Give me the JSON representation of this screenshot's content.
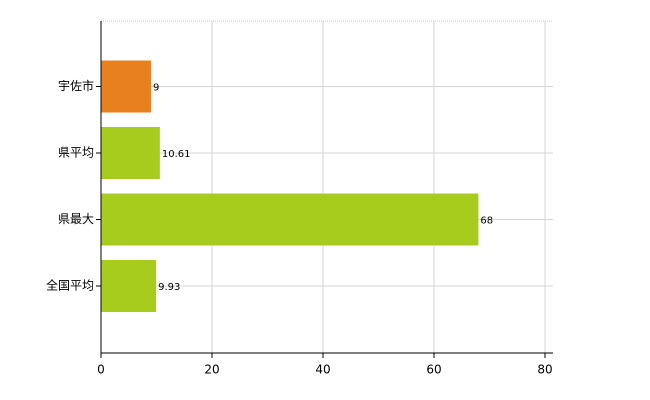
{
  "chart_data": {
    "type": "hbar",
    "categories": [
      "宇佐市",
      "県平均",
      "県最大",
      "全国平均"
    ],
    "values": [
      9,
      10.61,
      68,
      9.93
    ],
    "colors": [
      "#e8801f",
      "#a8cc1e",
      "#a8cc1e",
      "#a8cc1e"
    ],
    "xlim": [
      0,
      80
    ],
    "xticks": [
      0,
      20,
      40,
      60,
      80
    ],
    "grid": true
  }
}
